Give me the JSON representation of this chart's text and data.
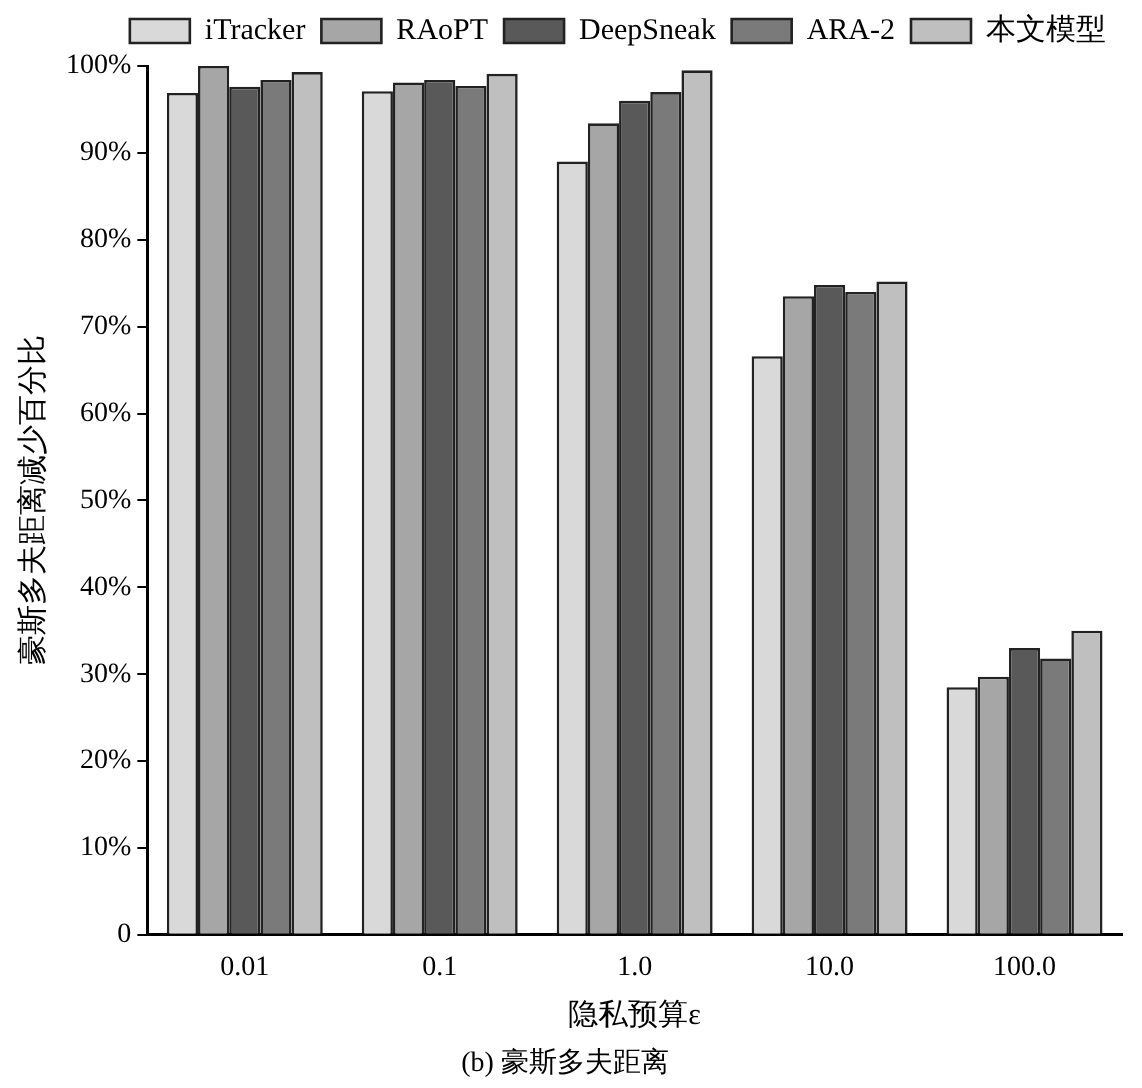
{
  "chart_data": {
    "type": "bar",
    "title": "(b) 豪斯多夫距离",
    "xlabel": "隐私预算ε",
    "ylabel": "豪斯多夫距离减少百分比",
    "categories": [
      "0.01",
      "0.1",
      "1.0",
      "10.0",
      "100.0"
    ],
    "series": [
      {
        "name": "iTracker",
        "color": "#d9d9d9",
        "values": [
          96.9,
          97.1,
          89.0,
          66.6,
          28.5
        ]
      },
      {
        "name": "RAoPT",
        "color": "#a6a6a6",
        "values": [
          100,
          98.1,
          93.4,
          73.5,
          29.7
        ]
      },
      {
        "name": "DeepSneak",
        "color": "#595959",
        "values": [
          97.6,
          98.4,
          96.0,
          74.8,
          33.0
        ]
      },
      {
        "name": "ARA-2",
        "color": "#7a7a7a",
        "values": [
          98.4,
          97.7,
          97.0,
          74.0,
          31.8
        ]
      },
      {
        "name": "本文模型",
        "color": "#bfbfbf",
        "values": [
          99.3,
          99.1,
          99.5,
          75.2,
          35.0
        ]
      }
    ],
    "ylim": [
      0,
      100
    ],
    "yticks": [
      {
        "value": 0,
        "label": "0"
      },
      {
        "value": 10,
        "label": "10%"
      },
      {
        "value": 20,
        "label": "20%"
      },
      {
        "value": 30,
        "label": "30%"
      },
      {
        "value": 40,
        "label": "40%"
      },
      {
        "value": 50,
        "label": "50%"
      },
      {
        "value": 60,
        "label": "60%"
      },
      {
        "value": 70,
        "label": "70%"
      },
      {
        "value": 80,
        "label": "80%"
      },
      {
        "value": 90,
        "label": "90%"
      },
      {
        "value": 100,
        "label": "100%"
      }
    ],
    "grid": false,
    "legend": "top right"
  }
}
